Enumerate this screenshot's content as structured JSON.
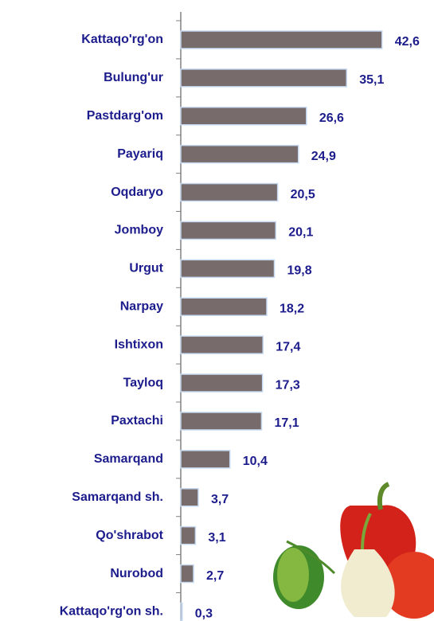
{
  "chart_data": {
    "type": "bar",
    "orientation": "horizontal",
    "categories": [
      "Kattaqo'rg'on",
      "Bulung'ur",
      "Pastdarg'om",
      "Payariq",
      "Oqdaryo",
      "Jomboy",
      "Urgut",
      "Narpay",
      "Ishtixon",
      "Tayloq",
      "Paxtachi",
      "Samarqand",
      "Samarqand sh.",
      "Qo'shrabot",
      "Nurobod",
      "Kattaqo'rg'on sh."
    ],
    "values": [
      42.6,
      35.1,
      26.6,
      24.9,
      20.5,
      20.1,
      19.8,
      18.2,
      17.4,
      17.3,
      17.1,
      10.4,
      3.7,
      3.1,
      2.7,
      0.3
    ],
    "value_labels": [
      "42,6",
      "35,1",
      "26,6",
      "24,9",
      "20,5",
      "20,1",
      "19,8",
      "18,2",
      "17,4",
      "17,3",
      "17,1",
      "10,4",
      "3,7",
      "3,1",
      "2,7",
      "0,3"
    ],
    "color": "#776b6b",
    "xlim": [
      0,
      45
    ]
  }
}
